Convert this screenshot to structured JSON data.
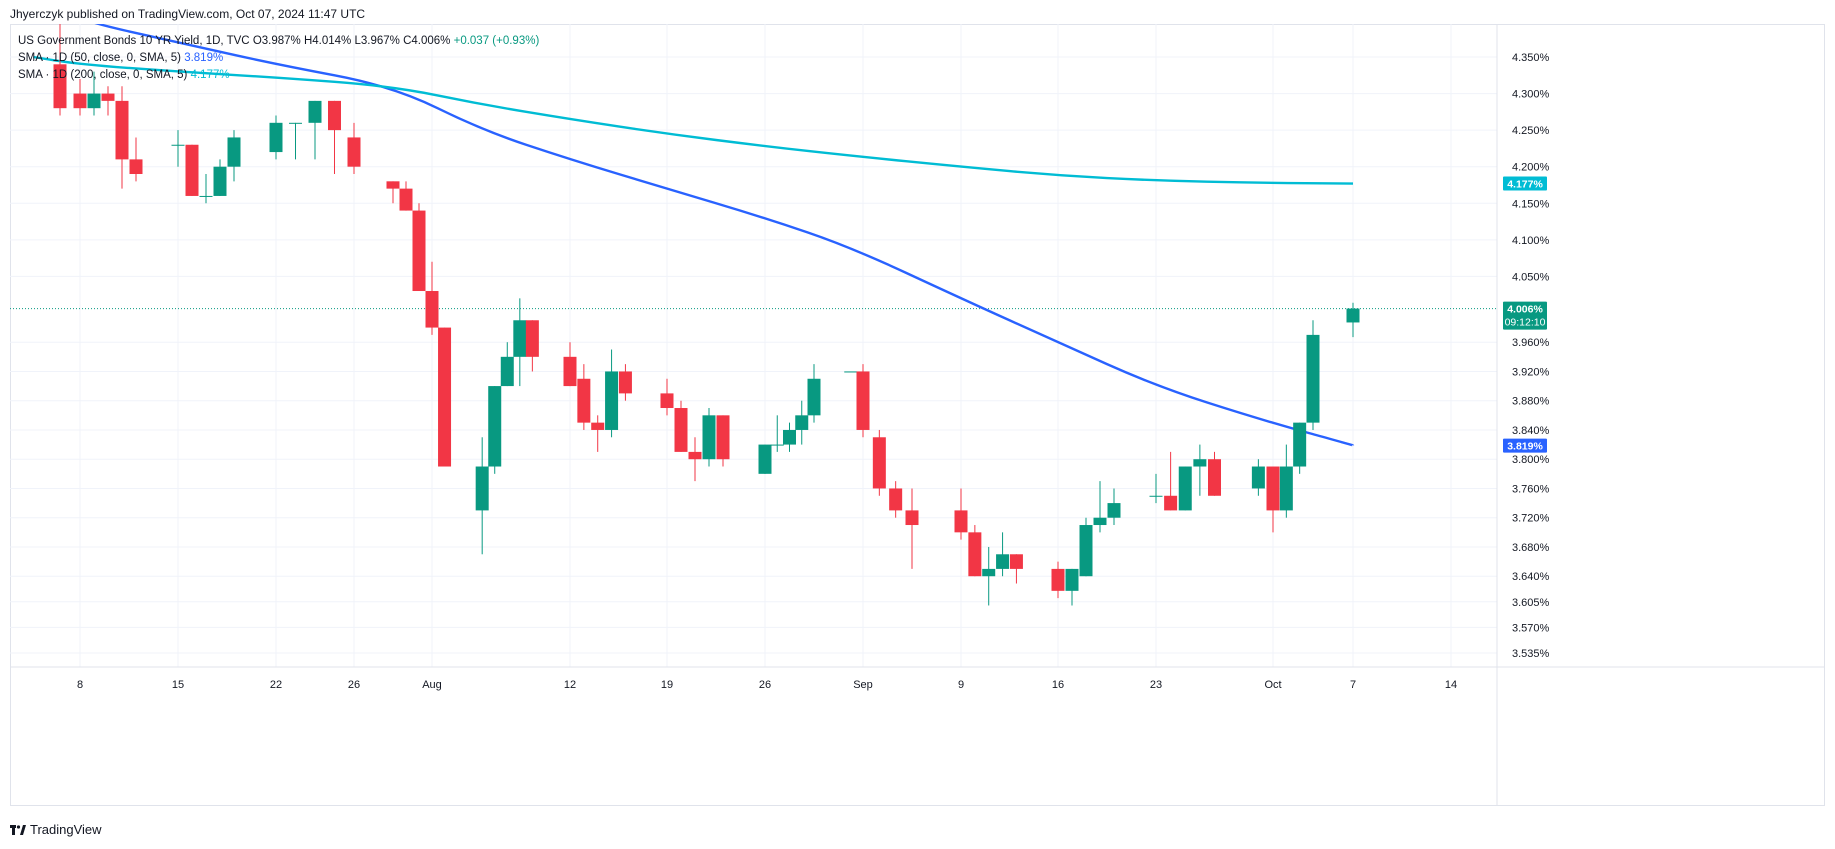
{
  "header": {
    "published_by": "Jhyerczyk published on TradingView.com, Oct 07, 2024 11:47 UTC"
  },
  "legend": {
    "symbol": "US Government Bonds 10 YR Yield, 1D, TVC",
    "open": "O3.987%",
    "high": "H4.014%",
    "low": "L3.967%",
    "close": "C4.006%",
    "change": "+0.037 (+0.93%)",
    "sma50_label": "SMA · 1D (50, close, 0, SMA, 5)",
    "sma50_value": "3.819%",
    "sma200_label": "SMA · 1D (200, close, 0, SMA, 5)",
    "sma200_value": "4.177%"
  },
  "footer": {
    "brand": "TradingView"
  },
  "colors": {
    "up": "#089981",
    "down": "#f23645",
    "sma50": "#2962ff",
    "sma200": "#00bcd4",
    "grid": "#f0f3fa",
    "axis_text": "#131722"
  },
  "price_badges": {
    "sma200": "4.177%",
    "last_price": "4.006%",
    "countdown": "09:12:10",
    "sma50": "3.819%"
  },
  "chart_data": {
    "type": "candlestick",
    "y_unit": "%",
    "y_ticks": [
      4.35,
      4.3,
      4.25,
      4.2,
      4.15,
      4.1,
      4.05,
      3.96,
      3.92,
      3.88,
      3.84,
      3.8,
      3.76,
      3.72,
      3.68,
      3.64,
      3.605,
      3.57,
      3.535
    ],
    "y_tick_labels": [
      "4.350%",
      "4.300%",
      "4.250%",
      "4.200%",
      "4.150%",
      "4.100%",
      "4.050%",
      "3.960%",
      "3.920%",
      "3.880%",
      "3.840%",
      "3.800%",
      "3.760%",
      "3.720%",
      "3.680%",
      "3.640%",
      "3.605%",
      "3.570%",
      "3.535%"
    ],
    "x_ticks": [
      {
        "date": "2024-07-08",
        "label": "8"
      },
      {
        "date": "2024-07-15",
        "label": "15"
      },
      {
        "date": "2024-07-22",
        "label": "22"
      },
      {
        "date": "2024-07-26",
        "label": "26"
      },
      {
        "date": "2024-08-01",
        "label": "Aug"
      },
      {
        "date": "2024-08-12",
        "label": "12"
      },
      {
        "date": "2024-08-19",
        "label": "19"
      },
      {
        "date": "2024-08-26",
        "label": "26"
      },
      {
        "date": "2024-09-03",
        "label": "Sep"
      },
      {
        "date": "2024-09-09",
        "label": "9"
      },
      {
        "date": "2024-09-16",
        "label": "16"
      },
      {
        "date": "2024-09-23",
        "label": "23"
      },
      {
        "date": "2024-10-01",
        "label": "Oct"
      },
      {
        "date": "2024-10-07",
        "label": "7"
      },
      {
        "date": "2024-10-14",
        "label": "14"
      }
    ],
    "candles": [
      {
        "date": "2024-07-05",
        "o": 4.34,
        "h": 4.41,
        "l": 4.27,
        "c": 4.28
      },
      {
        "date": "2024-07-08",
        "o": 4.3,
        "h": 4.32,
        "l": 4.27,
        "c": 4.28
      },
      {
        "date": "2024-07-09",
        "o": 4.28,
        "h": 4.33,
        "l": 4.27,
        "c": 4.3
      },
      {
        "date": "2024-07-10",
        "o": 4.3,
        "h": 4.31,
        "l": 4.27,
        "c": 4.29
      },
      {
        "date": "2024-07-11",
        "o": 4.29,
        "h": 4.31,
        "l": 4.17,
        "c": 4.21
      },
      {
        "date": "2024-07-12",
        "o": 4.21,
        "h": 4.24,
        "l": 4.18,
        "c": 4.19
      },
      {
        "date": "2024-07-15",
        "o": 4.23,
        "h": 4.25,
        "l": 4.2,
        "c": 4.23
      },
      {
        "date": "2024-07-16",
        "o": 4.23,
        "h": 4.23,
        "l": 4.16,
        "c": 4.16
      },
      {
        "date": "2024-07-17",
        "o": 4.16,
        "h": 4.19,
        "l": 4.15,
        "c": 4.16
      },
      {
        "date": "2024-07-18",
        "o": 4.16,
        "h": 4.21,
        "l": 4.16,
        "c": 4.2
      },
      {
        "date": "2024-07-19",
        "o": 4.2,
        "h": 4.25,
        "l": 4.18,
        "c": 4.24
      },
      {
        "date": "2024-07-22",
        "o": 4.22,
        "h": 4.27,
        "l": 4.21,
        "c": 4.26
      },
      {
        "date": "2024-07-23",
        "o": 4.26,
        "h": 4.26,
        "l": 4.21,
        "c": 4.26
      },
      {
        "date": "2024-07-24",
        "o": 4.26,
        "h": 4.29,
        "l": 4.21,
        "c": 4.29
      },
      {
        "date": "2024-07-25",
        "o": 4.29,
        "h": 4.29,
        "l": 4.19,
        "c": 4.25
      },
      {
        "date": "2024-07-26",
        "o": 4.24,
        "h": 4.26,
        "l": 4.19,
        "c": 4.2
      },
      {
        "date": "2024-07-29",
        "o": 4.18,
        "h": 4.18,
        "l": 4.15,
        "c": 4.17
      },
      {
        "date": "2024-07-30",
        "o": 4.17,
        "h": 4.18,
        "l": 4.14,
        "c": 4.14
      },
      {
        "date": "2024-07-31",
        "o": 4.14,
        "h": 4.15,
        "l": 4.03,
        "c": 4.03
      },
      {
        "date": "2024-08-01",
        "o": 4.03,
        "h": 4.07,
        "l": 3.97,
        "c": 3.98
      },
      {
        "date": "2024-08-02",
        "o": 3.98,
        "h": 3.98,
        "l": 3.79,
        "c": 3.79
      },
      {
        "date": "2024-08-05",
        "o": 3.73,
        "h": 3.83,
        "l": 3.67,
        "c": 3.79
      },
      {
        "date": "2024-08-06",
        "o": 3.79,
        "h": 3.9,
        "l": 3.78,
        "c": 3.9
      },
      {
        "date": "2024-08-07",
        "o": 3.9,
        "h": 3.96,
        "l": 3.9,
        "c": 3.94
      },
      {
        "date": "2024-08-08",
        "o": 3.94,
        "h": 4.02,
        "l": 3.9,
        "c": 3.99
      },
      {
        "date": "2024-08-09",
        "o": 3.99,
        "h": 3.99,
        "l": 3.92,
        "c": 3.94
      },
      {
        "date": "2024-08-12",
        "o": 3.94,
        "h": 3.96,
        "l": 3.9,
        "c": 3.9
      },
      {
        "date": "2024-08-13",
        "o": 3.91,
        "h": 3.93,
        "l": 3.84,
        "c": 3.85
      },
      {
        "date": "2024-08-14",
        "o": 3.85,
        "h": 3.86,
        "l": 3.81,
        "c": 3.84
      },
      {
        "date": "2024-08-15",
        "o": 3.84,
        "h": 3.95,
        "l": 3.83,
        "c": 3.92
      },
      {
        "date": "2024-08-16",
        "o": 3.92,
        "h": 3.93,
        "l": 3.88,
        "c": 3.89
      },
      {
        "date": "2024-08-19",
        "o": 3.89,
        "h": 3.91,
        "l": 3.86,
        "c": 3.87
      },
      {
        "date": "2024-08-20",
        "o": 3.87,
        "h": 3.88,
        "l": 3.81,
        "c": 3.81
      },
      {
        "date": "2024-08-21",
        "o": 3.81,
        "h": 3.83,
        "l": 3.77,
        "c": 3.8
      },
      {
        "date": "2024-08-22",
        "o": 3.8,
        "h": 3.87,
        "l": 3.79,
        "c": 3.86
      },
      {
        "date": "2024-08-23",
        "o": 3.86,
        "h": 3.86,
        "l": 3.79,
        "c": 3.8
      },
      {
        "date": "2024-08-26",
        "o": 3.78,
        "h": 3.82,
        "l": 3.78,
        "c": 3.82
      },
      {
        "date": "2024-08-27",
        "o": 3.82,
        "h": 3.86,
        "l": 3.81,
        "c": 3.82
      },
      {
        "date": "2024-08-28",
        "o": 3.82,
        "h": 3.85,
        "l": 3.81,
        "c": 3.84
      },
      {
        "date": "2024-08-29",
        "o": 3.84,
        "h": 3.88,
        "l": 3.82,
        "c": 3.86
      },
      {
        "date": "2024-08-30",
        "o": 3.86,
        "h": 3.93,
        "l": 3.85,
        "c": 3.91
      },
      {
        "date": "2024-09-02",
        "o": 3.92,
        "h": 3.92,
        "l": 3.92,
        "c": 3.92
      },
      {
        "date": "2024-09-03",
        "o": 3.92,
        "h": 3.93,
        "l": 3.83,
        "c": 3.84
      },
      {
        "date": "2024-09-04",
        "o": 3.83,
        "h": 3.84,
        "l": 3.75,
        "c": 3.76
      },
      {
        "date": "2024-09-05",
        "o": 3.76,
        "h": 3.77,
        "l": 3.72,
        "c": 3.73
      },
      {
        "date": "2024-09-06",
        "o": 3.73,
        "h": 3.76,
        "l": 3.65,
        "c": 3.71
      },
      {
        "date": "2024-09-09",
        "o": 3.73,
        "h": 3.76,
        "l": 3.69,
        "c": 3.7
      },
      {
        "date": "2024-09-10",
        "o": 3.7,
        "h": 3.71,
        "l": 3.64,
        "c": 3.64
      },
      {
        "date": "2024-09-11",
        "o": 3.64,
        "h": 3.68,
        "l": 3.6,
        "c": 3.65
      },
      {
        "date": "2024-09-12",
        "o": 3.65,
        "h": 3.7,
        "l": 3.64,
        "c": 3.67
      },
      {
        "date": "2024-09-13",
        "o": 3.67,
        "h": 3.67,
        "l": 3.63,
        "c": 3.65
      },
      {
        "date": "2024-09-16",
        "o": 3.65,
        "h": 3.66,
        "l": 3.61,
        "c": 3.62
      },
      {
        "date": "2024-09-17",
        "o": 3.62,
        "h": 3.65,
        "l": 3.6,
        "c": 3.65
      },
      {
        "date": "2024-09-18",
        "o": 3.64,
        "h": 3.72,
        "l": 3.64,
        "c": 3.71
      },
      {
        "date": "2024-09-19",
        "o": 3.71,
        "h": 3.77,
        "l": 3.7,
        "c": 3.72
      },
      {
        "date": "2024-09-20",
        "o": 3.72,
        "h": 3.76,
        "l": 3.71,
        "c": 3.74
      },
      {
        "date": "2024-09-23",
        "o": 3.75,
        "h": 3.78,
        "l": 3.74,
        "c": 3.75
      },
      {
        "date": "2024-09-24",
        "o": 3.75,
        "h": 3.81,
        "l": 3.73,
        "c": 3.73
      },
      {
        "date": "2024-09-25",
        "o": 3.73,
        "h": 3.79,
        "l": 3.73,
        "c": 3.79
      },
      {
        "date": "2024-09-26",
        "o": 3.79,
        "h": 3.82,
        "l": 3.75,
        "c": 3.8
      },
      {
        "date": "2024-09-27",
        "o": 3.8,
        "h": 3.81,
        "l": 3.75,
        "c": 3.75
      },
      {
        "date": "2024-09-30",
        "o": 3.76,
        "h": 3.8,
        "l": 3.75,
        "c": 3.79
      },
      {
        "date": "2024-10-01",
        "o": 3.79,
        "h": 3.79,
        "l": 3.7,
        "c": 3.73
      },
      {
        "date": "2024-10-02",
        "o": 3.73,
        "h": 3.82,
        "l": 3.72,
        "c": 3.79
      },
      {
        "date": "2024-10-03",
        "o": 3.79,
        "h": 3.85,
        "l": 3.78,
        "c": 3.85
      },
      {
        "date": "2024-10-04",
        "o": 3.85,
        "h": 3.99,
        "l": 3.84,
        "c": 3.97
      },
      {
        "date": "2024-10-07",
        "o": 3.987,
        "h": 4.014,
        "l": 3.967,
        "c": 4.006
      }
    ],
    "series": [
      {
        "name": "SMA · 1D (50, close, 0, SMA, 5)",
        "color": "#2962ff",
        "points": [
          {
            "date": "2024-07-01",
            "y": 4.43
          },
          {
            "date": "2024-07-08",
            "y": 4.4
          },
          {
            "date": "2024-07-15",
            "y": 4.37
          },
          {
            "date": "2024-07-22",
            "y": 4.34
          },
          {
            "date": "2024-07-29",
            "y": 4.31
          },
          {
            "date": "2024-08-05",
            "y": 4.25
          },
          {
            "date": "2024-08-12",
            "y": 4.21
          },
          {
            "date": "2024-08-19",
            "y": 4.17
          },
          {
            "date": "2024-08-26",
            "y": 4.13
          },
          {
            "date": "2024-09-02",
            "y": 4.09
          },
          {
            "date": "2024-09-09",
            "y": 4.02
          },
          {
            "date": "2024-09-16",
            "y": 3.96
          },
          {
            "date": "2024-09-23",
            "y": 3.9
          },
          {
            "date": "2024-09-30",
            "y": 3.855
          },
          {
            "date": "2024-10-07",
            "y": 3.819
          }
        ]
      },
      {
        "name": "SMA · 1D (200, close, 0, SMA, 5)",
        "color": "#00bcd4",
        "points": [
          {
            "date": "2024-07-01",
            "y": 4.35
          },
          {
            "date": "2024-07-08",
            "y": 4.34
          },
          {
            "date": "2024-07-15",
            "y": 4.33
          },
          {
            "date": "2024-07-22",
            "y": 4.322
          },
          {
            "date": "2024-07-29",
            "y": 4.31
          },
          {
            "date": "2024-08-05",
            "y": 4.285
          },
          {
            "date": "2024-08-12",
            "y": 4.265
          },
          {
            "date": "2024-08-19",
            "y": 4.245
          },
          {
            "date": "2024-08-26",
            "y": 4.228
          },
          {
            "date": "2024-09-02",
            "y": 4.215
          },
          {
            "date": "2024-09-09",
            "y": 4.2
          },
          {
            "date": "2024-09-16",
            "y": 4.188
          },
          {
            "date": "2024-09-23",
            "y": 4.181
          },
          {
            "date": "2024-09-30",
            "y": 4.178
          },
          {
            "date": "2024-10-07",
            "y": 4.177
          }
        ]
      }
    ],
    "last_price_line": 4.006,
    "grid": true
  }
}
